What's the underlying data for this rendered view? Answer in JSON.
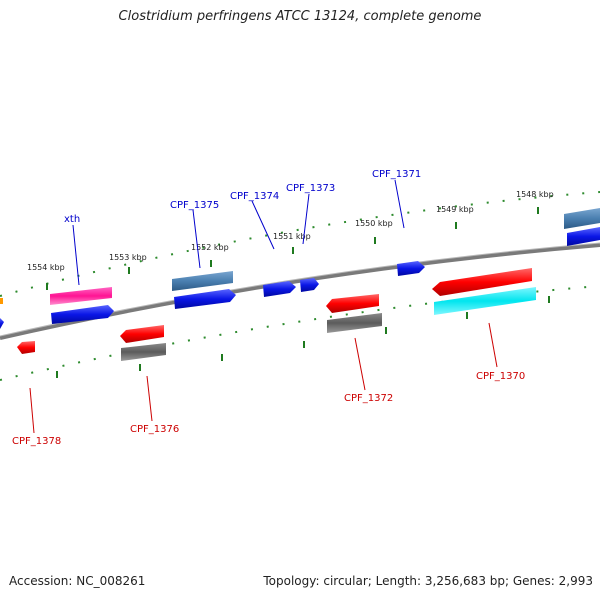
{
  "title": "Clostridium perfringens ATCC 13124, complete genome",
  "footer": {
    "accession": "Accession: NC_008261",
    "summary": "Topology: circular; Length: 3,256,683 bp; Genes: 2,993"
  },
  "colors": {
    "background": "#ffffff",
    "backbone": "#8a8a8a",
    "ticks": "#1f7a1f",
    "forward_label": "#0000cc",
    "reverse_label": "#cc0000",
    "blue": "#0a16e6",
    "steel_blue": "#4a7fb0",
    "pink": "#ff1493",
    "red": "#ff0000",
    "gray": "#5c5c5c",
    "cyan": "#00e5ee"
  },
  "scale_labels": [
    "1554 kbp",
    "1553 kbp",
    "1552 kbp",
    "1551 kbp",
    "1550 kbp",
    "1549 kbp",
    "1548 kbp"
  ],
  "gene_labels": {
    "forward": [
      "xth",
      "CPF_1375",
      "CPF_1374",
      "CPF_1373",
      "CPF_1371"
    ],
    "reverse": [
      "CPF_1378",
      "CPF_1376",
      "CPF_1372",
      "CPF_1370"
    ]
  }
}
